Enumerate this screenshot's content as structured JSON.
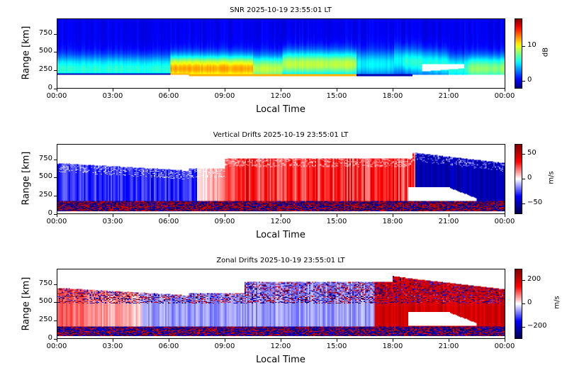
{
  "chart_data": [
    {
      "type": "heatmap",
      "title": "SNR 2025-10-19 23:55:01 LT",
      "xlabel": "Local Time",
      "ylabel": "Range [km]",
      "xticks": [
        "00:00",
        "03:00",
        "06:00",
        "09:00",
        "12:00",
        "15:00",
        "18:00",
        "21:00",
        "00:00"
      ],
      "xlim_hours": [
        0,
        24
      ],
      "yticks": [
        "0",
        "250",
        "500",
        "750"
      ],
      "ylim": [
        0,
        950
      ],
      "colormap": "jet",
      "colorbar": {
        "label": "dB",
        "ticks": [
          "0",
          "10"
        ],
        "tick_values": [
          0,
          10
        ],
        "range": [
          -2,
          18
        ]
      },
      "description_values": "Peak SNR ~10-13 dB near 250-300 km around 07:00-10:00 LT; background ~0 dB above 600 km; no data below ~150 km; gap near 19:30-21:30 LT at 250-350 km"
    },
    {
      "type": "heatmap",
      "title": "Vertical Drifts 2025-10-19 23:55:01 LT",
      "xlabel": "Local Time",
      "ylabel": "Range [km]",
      "xticks": [
        "00:00",
        "03:00",
        "06:00",
        "09:00",
        "12:00",
        "15:00",
        "18:00",
        "21:00",
        "00:00"
      ],
      "xlim_hours": [
        0,
        24
      ],
      "yticks": [
        "0",
        "250",
        "500",
        "750"
      ],
      "ylim": [
        0,
        950
      ],
      "colormap": "seismic",
      "colorbar": {
        "label": "m/s",
        "ticks": [
          "50",
          "0",
          "−50"
        ],
        "tick_values": [
          50,
          0,
          -50
        ],
        "range": [
          -70,
          70
        ]
      },
      "description_values": "Negative (downward, ~-30 m/s) 00:00-07:00 LT; positive (~+30 to +50 m/s) 08:00-19:00 LT; strongly negative (~-50 m/s) 19:30-24:00 LT"
    },
    {
      "type": "heatmap",
      "title": "Zonal Drifts 2025-10-19 23:55:01 LT",
      "xlabel": "Local Time",
      "ylabel": "Range [km]",
      "xticks": [
        "00:00",
        "03:00",
        "06:00",
        "09:00",
        "12:00",
        "15:00",
        "18:00",
        "21:00",
        "00:00"
      ],
      "xlim_hours": [
        0,
        24
      ],
      "yticks": [
        "0",
        "250",
        "500",
        "750"
      ],
      "ylim": [
        0,
        950
      ],
      "colormap": "seismic",
      "colorbar": {
        "label": "m/s",
        "ticks": [
          "200",
          "0",
          "−200"
        ],
        "tick_values": [
          200,
          0,
          -200
        ],
        "range": [
          -300,
          300
        ]
      },
      "description_values": "Positive (eastward ~+100 m/s) 00:00-05:00 LT; weakly negative (~-50 m/s) 06:00-17:00 LT; strongly positive (~+200 m/s) 18:00-24:00 LT"
    }
  ]
}
